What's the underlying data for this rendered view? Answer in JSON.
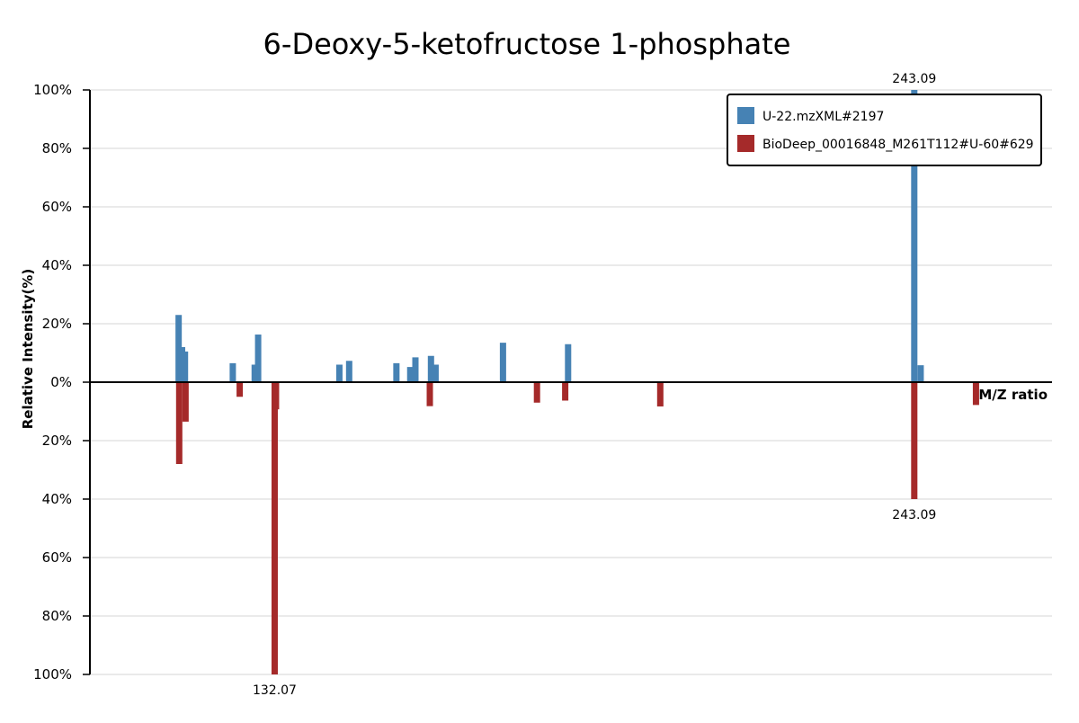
{
  "chart_data": {
    "type": "bar",
    "title": "6-Deoxy-5-ketofructose 1-phosphate",
    "xlabel": "M/Z ratio",
    "ylabel": "Relative Intensity(%)",
    "y_ticks_top": [
      "100%",
      "80%",
      "60%",
      "40%",
      "20%",
      "0%"
    ],
    "y_ticks_bottom": [
      "20%",
      "40%",
      "60%",
      "80%",
      "100%"
    ],
    "ylim": [
      -100,
      100
    ],
    "xlim": [
      100,
      267
    ],
    "grid": true,
    "legend_position": "top-right",
    "series": [
      {
        "name": "U-22.mzXML#2197",
        "color": "#4682b4",
        "direction": "up",
        "points": [
          {
            "mz": 115.4,
            "intensity": 23
          },
          {
            "mz": 116.0,
            "intensity": 12
          },
          {
            "mz": 116.5,
            "intensity": 10.5
          },
          {
            "mz": 124.8,
            "intensity": 6.5
          },
          {
            "mz": 128.6,
            "intensity": 6
          },
          {
            "mz": 129.2,
            "intensity": 16.3
          },
          {
            "mz": 143.3,
            "intensity": 6
          },
          {
            "mz": 145.0,
            "intensity": 7.3
          },
          {
            "mz": 153.2,
            "intensity": 6.5
          },
          {
            "mz": 155.6,
            "intensity": 5.2
          },
          {
            "mz": 156.5,
            "intensity": 8.5
          },
          {
            "mz": 159.2,
            "intensity": 9
          },
          {
            "mz": 160.0,
            "intensity": 6
          },
          {
            "mz": 171.7,
            "intensity": 13.5
          },
          {
            "mz": 183.0,
            "intensity": 13
          },
          {
            "mz": 243.09,
            "intensity": 100,
            "label": "243.09"
          },
          {
            "mz": 244.2,
            "intensity": 5.8
          }
        ]
      },
      {
        "name": "BioDeep_00016848_M261T112#U-60#629",
        "color": "#a52a2a",
        "direction": "down",
        "points": [
          {
            "mz": 115.5,
            "intensity": 28
          },
          {
            "mz": 116.6,
            "intensity": 13.5
          },
          {
            "mz": 126.0,
            "intensity": 5
          },
          {
            "mz": 132.3,
            "intensity": 9.3
          },
          {
            "mz": 132.07,
            "intensity": 100,
            "label": "132.07"
          },
          {
            "mz": 159.0,
            "intensity": 8.2
          },
          {
            "mz": 177.6,
            "intensity": 7
          },
          {
            "mz": 182.5,
            "intensity": 6.3
          },
          {
            "mz": 199.0,
            "intensity": 8.3
          },
          {
            "mz": 243.09,
            "intensity": 40,
            "label": "243.09"
          },
          {
            "mz": 253.8,
            "intensity": 7.8
          }
        ]
      }
    ]
  }
}
